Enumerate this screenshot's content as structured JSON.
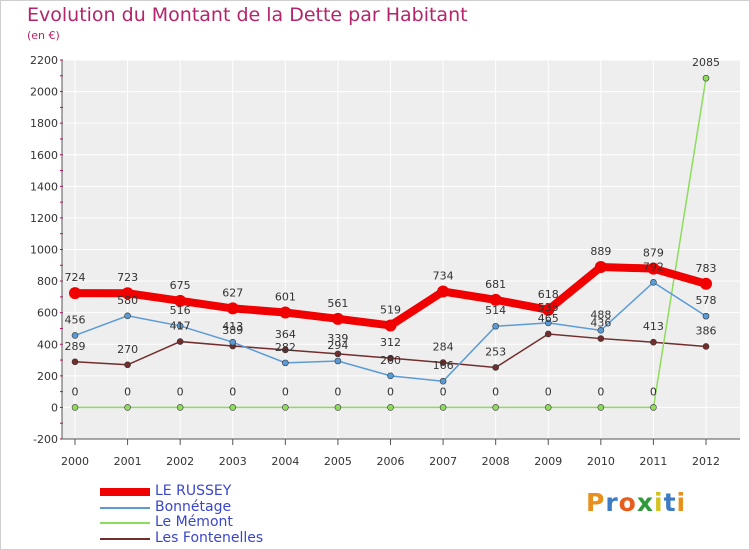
{
  "title": "Evolution du Montant de la Dette par Habitant",
  "unit": "(en €)",
  "logo": {
    "text": "Proxiti",
    "letters": [
      "P",
      "r",
      "o",
      "x",
      "i",
      "t",
      "i"
    ],
    "colors": [
      "#e88f1d",
      "#3e7bc4",
      "#e85d1d",
      "#2f9a3a",
      "#d4c21d",
      "#3e7bc4",
      "#e88f1d"
    ]
  },
  "chart_data": {
    "type": "line",
    "categories": [
      "2000",
      "2001",
      "2002",
      "2003",
      "2004",
      "2005",
      "2006",
      "2007",
      "2008",
      "2009",
      "2010",
      "2011",
      "2012"
    ],
    "ylim": [
      -200,
      2200
    ],
    "yticks": [
      -200,
      0,
      200,
      400,
      600,
      800,
      1000,
      1200,
      1400,
      1600,
      1800,
      2000,
      2200
    ],
    "grid": true,
    "legend_position": "bottom-left",
    "series": [
      {
        "name": "LE RUSSEY",
        "color": "#f00000",
        "width": 8,
        "values": [
          724,
          723,
          675,
          627,
          601,
          561,
          519,
          734,
          681,
          618,
          889,
          879,
          783
        ]
      },
      {
        "name": "Bonnétage",
        "color": "#5b9bd5",
        "width": 1.5,
        "values": [
          456,
          580,
          516,
          413,
          282,
          294,
          200,
          166,
          514,
          535,
          488,
          792,
          578
        ]
      },
      {
        "name": "Le Mémont",
        "color": "#8edc5c",
        "width": 1.5,
        "values": [
          0,
          0,
          0,
          0,
          0,
          0,
          0,
          0,
          0,
          0,
          0,
          0,
          2085
        ]
      },
      {
        "name": "Les Fontenelles",
        "color": "#722d2d",
        "width": 1.5,
        "values": [
          289,
          270,
          417,
          389,
          364,
          339,
          312,
          284,
          253,
          465,
          436,
          413,
          386
        ]
      }
    ],
    "data_labels": [
      [
        "724",
        "723",
        "675",
        "627",
        "601",
        "561",
        "519",
        "734",
        "681",
        "618",
        "889",
        "879",
        "783"
      ],
      [
        "456",
        "580",
        "516",
        "413",
        "282",
        "294",
        "200",
        "166",
        "514",
        "535",
        "488",
        "792",
        "578"
      ],
      [
        "0",
        "0",
        "0",
        "0",
        "0",
        "0",
        "0",
        "0",
        "0",
        "0",
        "0",
        "0",
        "2085"
      ],
      [
        "289",
        "270",
        "417",
        "389",
        "364",
        "339",
        "312",
        "284",
        "253",
        "465",
        "436",
        "413",
        "386"
      ]
    ]
  }
}
